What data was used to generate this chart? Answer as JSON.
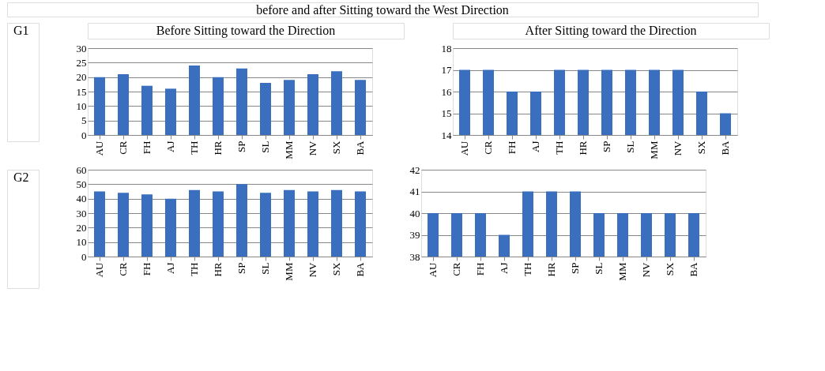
{
  "chart_data": [
    {
      "type": "bar",
      "title": "Before Sitting toward the Direction",
      "annotations": [
        "before and after Sitting toward the West Direction",
        "G1"
      ],
      "categories": [
        "AU",
        "CR",
        "FH",
        "AJ",
        "TH",
        "HR",
        "SP",
        "SL",
        "MM",
        "NV",
        "SX",
        "BA"
      ],
      "values": [
        20,
        21,
        17,
        16,
        24,
        20,
        23,
        18,
        19,
        21,
        22,
        19
      ],
      "color": "#3a6fc0",
      "ylim": [
        0,
        30
      ],
      "yticks": [
        0,
        5,
        10,
        15,
        20,
        25,
        30
      ],
      "grid": "y"
    },
    {
      "type": "bar",
      "title": "After Sitting toward the Direction",
      "categories": [
        "AU",
        "CR",
        "FH",
        "AJ",
        "TH",
        "HR",
        "SP",
        "SL",
        "MM",
        "NV",
        "SX",
        "BA"
      ],
      "values": [
        17,
        17,
        16,
        16,
        17,
        17,
        17,
        17,
        17,
        17,
        16,
        15
      ],
      "color": "#3a6fc0",
      "ylim": [
        14,
        18
      ],
      "yticks": [
        14,
        15,
        16,
        17,
        18
      ],
      "grid": "y"
    },
    {
      "type": "bar",
      "annotations": [
        "G2"
      ],
      "categories": [
        "AU",
        "CR",
        "FH",
        "AJ",
        "TH",
        "HR",
        "SP",
        "SL",
        "MM",
        "NV",
        "SX",
        "BA"
      ],
      "values": [
        45,
        44,
        43,
        40,
        46,
        45,
        50,
        44,
        46,
        45,
        46,
        45
      ],
      "color": "#3a6fc0",
      "ylim": [
        0,
        60
      ],
      "yticks": [
        0,
        10,
        20,
        30,
        40,
        50,
        60
      ],
      "grid": "y"
    },
    {
      "type": "bar",
      "categories": [
        "AU",
        "CR",
        "FH",
        "AJ",
        "TH",
        "HR",
        "SP",
        "SL",
        "MM",
        "NV",
        "SX",
        "BA"
      ],
      "values": [
        40,
        40,
        40,
        39,
        41,
        41,
        41,
        40,
        40,
        40,
        40,
        40
      ],
      "color": "#3a6fc0",
      "ylim": [
        38,
        42
      ],
      "yticks": [
        38,
        39,
        40,
        41,
        42
      ],
      "grid": "y"
    }
  ]
}
